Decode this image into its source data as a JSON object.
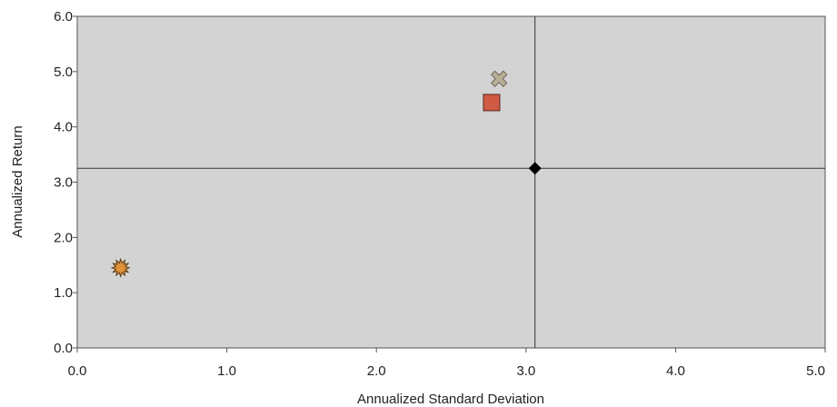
{
  "chart_data": {
    "type": "scatter",
    "title": "",
    "xlabel": "Annualized Standard Deviation",
    "ylabel": "Annualized Return",
    "xlim": [
      0,
      5
    ],
    "ylim": [
      0,
      6
    ],
    "x_ticks": [
      "0.0",
      "1.0",
      "2.0",
      "3.0",
      "4.0",
      "5.0"
    ],
    "y_ticks": [
      "0.0",
      "1.0",
      "2.0",
      "3.0",
      "4.0",
      "5.0",
      "6.0"
    ],
    "grid": false,
    "legend": "none",
    "reference_lines": {
      "x": 3.06,
      "y": 3.25
    },
    "points": [
      {
        "x": 2.82,
        "y": 4.87,
        "marker": "x-mark",
        "color": "#b9ae97"
      },
      {
        "x": 2.77,
        "y": 4.44,
        "marker": "square",
        "color": "#d05a44"
      },
      {
        "x": 3.06,
        "y": 3.25,
        "marker": "diamond",
        "color": "#000000"
      },
      {
        "x": 0.29,
        "y": 1.45,
        "marker": "starburst",
        "color": "#e0923a"
      }
    ]
  },
  "colors": {
    "plot_background": "#d3d3d3",
    "axis": "#555555",
    "reference_line": "#333333"
  }
}
